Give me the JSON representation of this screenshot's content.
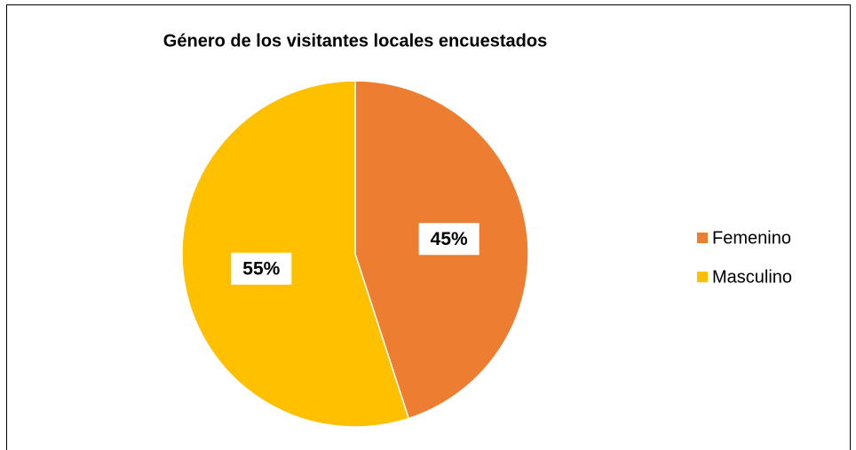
{
  "chart_data": {
    "type": "pie",
    "title": "Género de los visitantes locales encuestados",
    "categories": [
      "Femenino",
      "Masculino"
    ],
    "values": [
      45,
      55
    ],
    "value_labels": [
      "45%",
      "55%"
    ],
    "colors": [
      "#ED7D31",
      "#FFC000"
    ],
    "legend": "right"
  }
}
